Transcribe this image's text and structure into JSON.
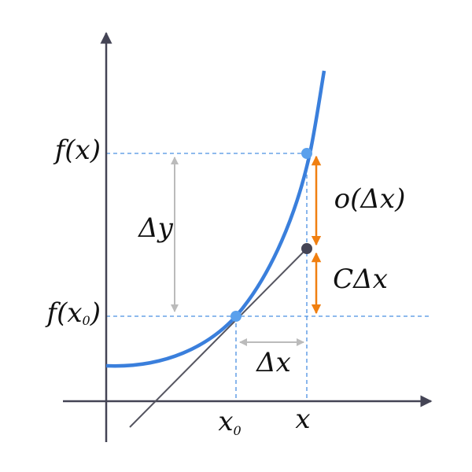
{
  "labels": {
    "fx": "f(x)",
    "fx0": {
      "main": "f(x",
      "sub": "0",
      "close": ")"
    },
    "delta_y": "Δy",
    "o_delta_x": "o(Δx)",
    "c_delta_x": "CΔx",
    "delta_x": "Δx",
    "x0": {
      "main": "x",
      "sub": "0"
    },
    "x": "x"
  }
}
